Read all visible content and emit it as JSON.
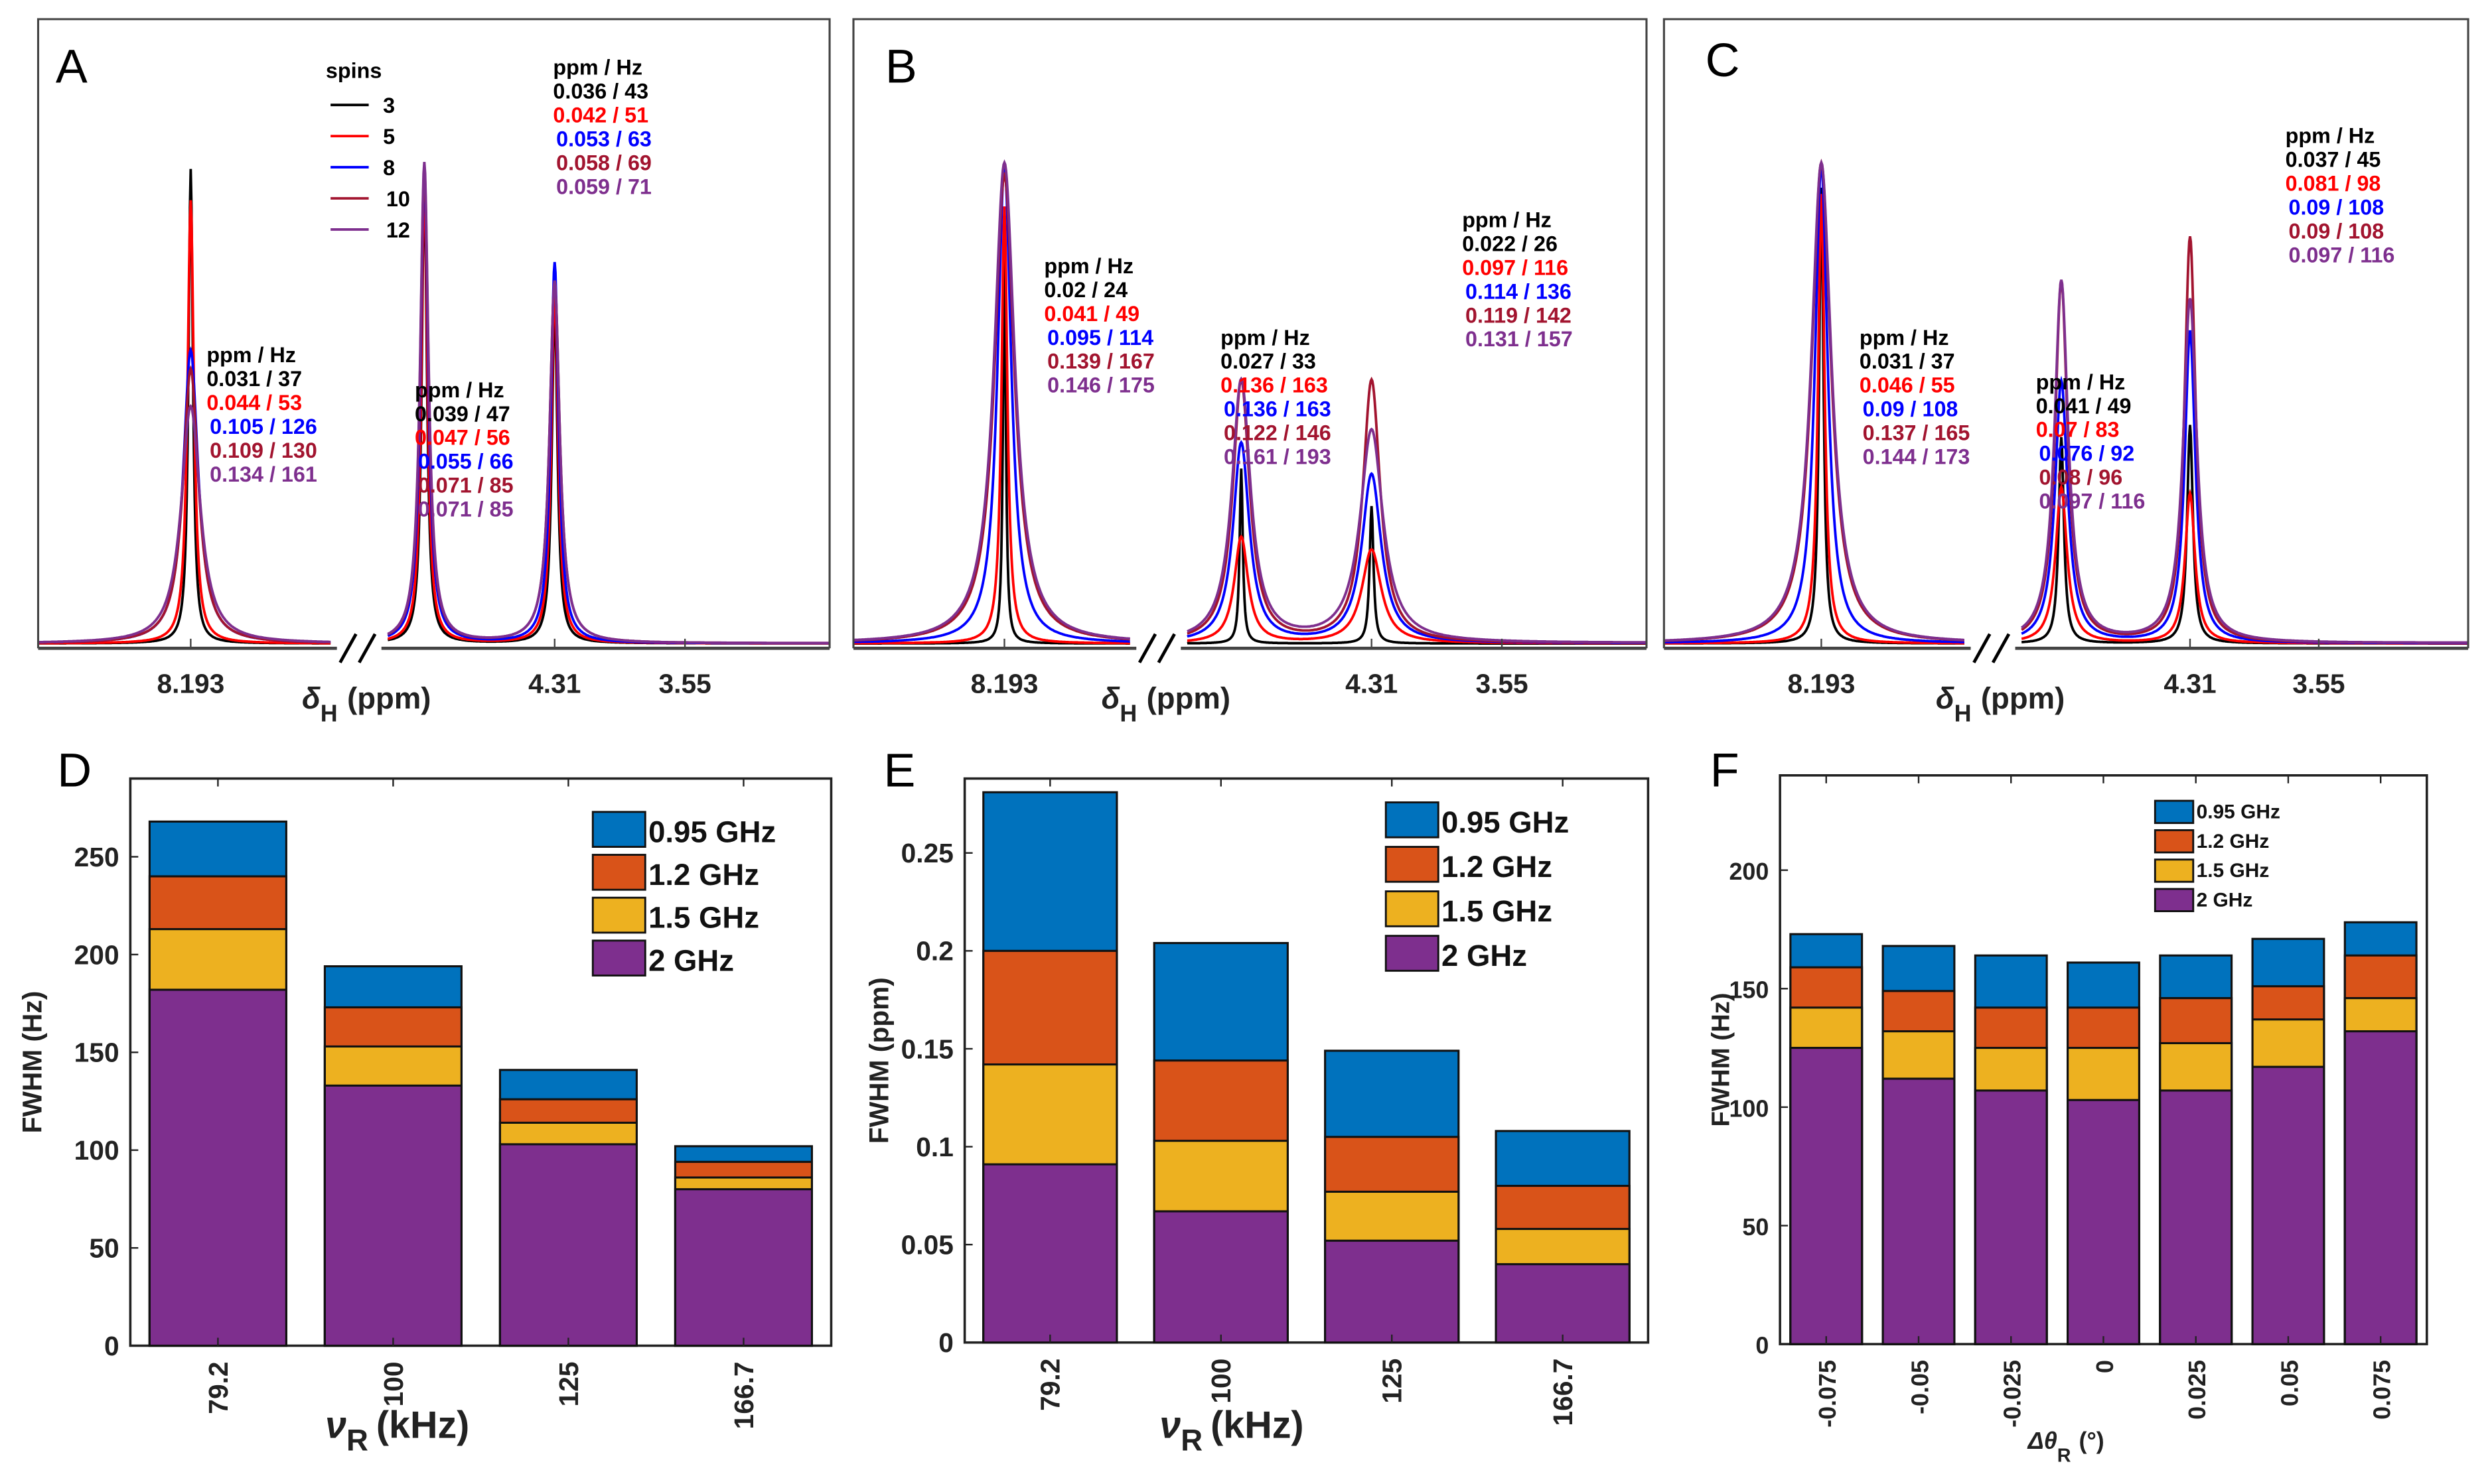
{
  "spectrum_colors": [
    "#000000",
    "#ff0000",
    "#0000ff",
    "#a2142f",
    "#7e2f8e"
  ],
  "bar_colors": [
    "#0072bd",
    "#d95319",
    "#edb120",
    "#7e2f8e"
  ],
  "chart_data": [
    {
      "type": "line",
      "panel_label": "A",
      "xlabel": {
        "symbol": "δ",
        "subscript": "H",
        "unit": "(ppm)"
      },
      "xticks": [
        {
          "value": 8.193,
          "label": "8.193"
        },
        {
          "value": 4.31,
          "label": "4.31"
        },
        {
          "value": 3.55,
          "label": "3.55"
        }
      ],
      "axis_break": true,
      "legend": {
        "title": "spins",
        "entries": [
          "3",
          "5",
          "8",
          "10",
          "12"
        ],
        "placement": "top-center"
      },
      "peaks_ppm": [
        8.193,
        4.31,
        3.55
      ],
      "relative_intensity": [
        [
          0.76,
          0.71,
          0.47,
          0.44,
          0.38
        ],
        [
          0.55,
          0.57,
          0.61,
          0.58,
          0.58
        ],
        [
          0.75,
          0.75,
          0.76,
          0.76,
          0.77
        ]
      ],
      "annotations": [
        {
          "header": "ppm / Hz",
          "rows": [
            "0.031 / 37",
            "0.044 / 53",
            "0.105 / 126",
            "0.109 / 130",
            "0.134 / 161"
          ]
        },
        {
          "header": "ppm / Hz",
          "rows": [
            "0.039 / 47",
            "0.047 / 56",
            "0.055 / 66",
            "0.071 / 85",
            "0.071 / 85"
          ]
        },
        {
          "header": "ppm / Hz",
          "rows": [
            "0.036 / 43",
            "0.042 / 51",
            "0.053 / 63",
            "0.058 / 69",
            "0.059 / 71"
          ]
        }
      ]
    },
    {
      "type": "line",
      "panel_label": "B",
      "xlabel": {
        "symbol": "δ",
        "subscript": "H",
        "unit": "(ppm)"
      },
      "xticks": [
        {
          "value": 8.193,
          "label": "8.193"
        },
        {
          "value": 4.31,
          "label": "4.31"
        },
        {
          "value": 3.55,
          "label": "3.55"
        }
      ],
      "axis_break": true,
      "peaks_ppm": [
        8.193,
        4.31,
        3.55
      ],
      "relative_intensity": [
        [
          0.62,
          0.7,
          0.77,
          0.75,
          0.77
        ],
        [
          0.22,
          0.15,
          0.27,
          0.42,
          0.34
        ],
        [
          0.28,
          0.17,
          0.32,
          0.42,
          0.42
        ]
      ],
      "annotations": [
        {
          "header": "ppm / Hz",
          "rows": [
            "0.02 / 24",
            "0.041 / 49",
            "0.095 / 114",
            "0.139 / 167",
            "0.146 / 175"
          ]
        },
        {
          "header": "ppm / Hz",
          "rows": [
            "0.027 / 33",
            "0.136 / 163",
            "0.136 / 163",
            "0.122 / 146",
            "0.161 / 193"
          ]
        },
        {
          "header": "ppm / Hz",
          "rows": [
            "0.022 / 26",
            "0.097 / 116",
            "0.114 / 136",
            "0.119 / 142",
            "0.131 / 157"
          ]
        }
      ]
    },
    {
      "type": "line",
      "panel_label": "C",
      "xlabel": {
        "symbol": "δ",
        "subscript": "H",
        "unit": "(ppm)"
      },
      "xticks": [
        {
          "value": 8.193,
          "label": "8.193"
        },
        {
          "value": 4.31,
          "label": "4.31"
        },
        {
          "value": 3.55,
          "label": "3.55"
        }
      ],
      "axis_break": true,
      "peaks_ppm": [
        8.193,
        4.31,
        3.55
      ],
      "relative_intensity": [
        [
          0.73,
          0.72,
          0.77,
          0.77,
          0.77
        ],
        [
          0.35,
          0.24,
          0.5,
          0.65,
          0.55
        ],
        [
          0.33,
          0.25,
          0.42,
          0.58,
          0.58
        ]
      ],
      "annotations": [
        {
          "header": "ppm / Hz",
          "rows": [
            "0.031 / 37",
            "0.046 / 55",
            "0.09 / 108",
            "0.137 / 165",
            "0.144 / 173"
          ]
        },
        {
          "header": "ppm / Hz",
          "rows": [
            "0.041 / 49",
            "0.07 / 83",
            "0.076 / 92",
            "0.08 / 96",
            "0.097 / 116"
          ]
        },
        {
          "header": "ppm / Hz",
          "rows": [
            "0.037 / 45",
            "0.081 / 98",
            "0.09 / 108",
            "0.09 / 108",
            "0.097 / 116"
          ]
        }
      ]
    },
    {
      "type": "bar",
      "panel_label": "D",
      "ylabel": "FWHM (Hz)",
      "xlabel": {
        "symbol": "ν",
        "subscript": "R",
        "unit": "(kHz)"
      },
      "categories": [
        "79.2",
        "100",
        "125",
        "166.7"
      ],
      "ylim": [
        0,
        290
      ],
      "yticks": [
        0,
        50,
        100,
        150,
        200,
        250
      ],
      "legend_placement": "top-right",
      "series": [
        {
          "name": "0.95 GHz",
          "values": [
            268,
            194,
            141,
            102
          ]
        },
        {
          "name": "1.2 GHz",
          "values": [
            240,
            173,
            126,
            94
          ]
        },
        {
          "name": "1.5 GHz",
          "values": [
            213,
            153,
            114,
            86
          ]
        },
        {
          "name": "2 GHz",
          "values": [
            182,
            133,
            103,
            80
          ]
        }
      ]
    },
    {
      "type": "bar",
      "panel_label": "E",
      "ylabel": "FWHM (ppm)",
      "xlabel": {
        "symbol": "ν",
        "subscript": "R",
        "unit": "(kHz)"
      },
      "categories": [
        "79.2",
        "100",
        "125",
        "166.7"
      ],
      "ylim": [
        0,
        0.288
      ],
      "yticks": [
        0,
        0.05,
        0.1,
        0.15,
        0.2,
        0.25
      ],
      "legend_placement": "top-right",
      "series": [
        {
          "name": "0.95 GHz",
          "values": [
            0.281,
            0.204,
            0.149,
            0.108
          ]
        },
        {
          "name": "1.2 GHz",
          "values": [
            0.2,
            0.144,
            0.105,
            0.08
          ]
        },
        {
          "name": "1.5 GHz",
          "values": [
            0.142,
            0.103,
            0.077,
            0.058
          ]
        },
        {
          "name": "2 GHz",
          "values": [
            0.091,
            0.067,
            0.052,
            0.04
          ]
        }
      ]
    },
    {
      "type": "bar",
      "panel_label": "F",
      "ylabel": "FWHM (Hz)",
      "xlabel": {
        "symbol": "Δθ",
        "subscript": "R",
        "unit": "(°)"
      },
      "categories": [
        "-0.075",
        "-0.05",
        "-0.025",
        "0",
        "0.025",
        "0.05",
        "0.075"
      ],
      "ylim": [
        0,
        240
      ],
      "yticks": [
        0,
        50,
        100,
        150,
        200
      ],
      "legend_placement": "top-right",
      "series": [
        {
          "name": "0.95 GHz",
          "values": [
            173,
            168,
            164,
            161,
            164,
            171,
            178
          ]
        },
        {
          "name": "1.2 GHz",
          "values": [
            159,
            149,
            142,
            142,
            146,
            151,
            164
          ]
        },
        {
          "name": "1.5 GHz",
          "values": [
            142,
            132,
            125,
            125,
            127,
            137,
            146
          ]
        },
        {
          "name": "2 GHz",
          "values": [
            125,
            112,
            107,
            103,
            107,
            117,
            132
          ]
        }
      ]
    }
  ]
}
